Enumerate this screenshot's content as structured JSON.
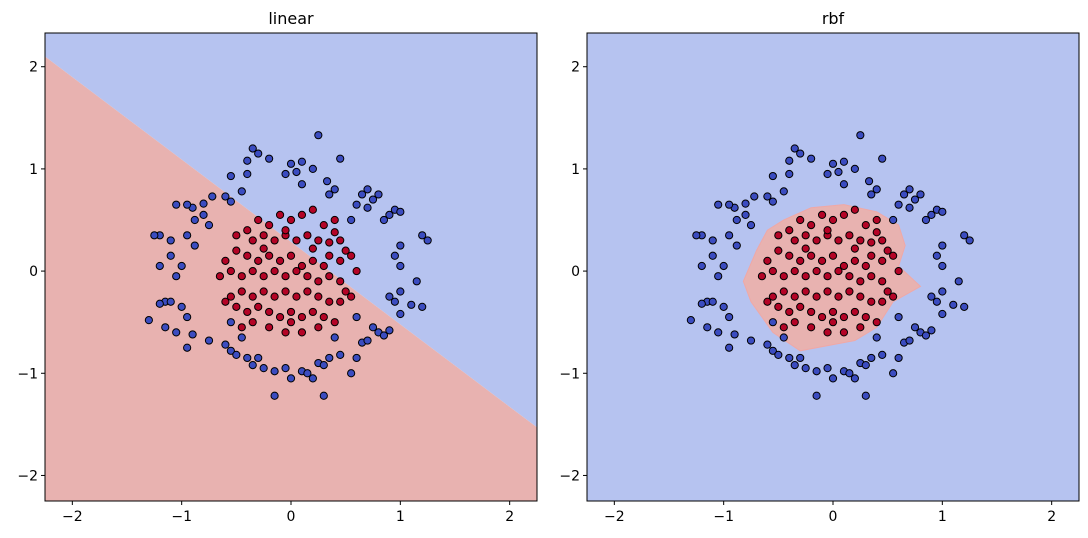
{
  "chart_data": [
    {
      "type": "scatter",
      "subtype": "decision-boundary",
      "title": "linear",
      "xlabel": "",
      "ylabel": "",
      "xlim": [
        -2.25,
        2.25
      ],
      "ylim": [
        -2.25,
        2.33
      ],
      "xticks": [
        -2,
        -1,
        0,
        1,
        2
      ],
      "yticks": [
        -2,
        -1,
        0,
        1,
        2
      ],
      "xtick_labels": [
        "−2",
        "−1",
        "0",
        "1",
        "2"
      ],
      "ytick_labels": [
        "−2",
        "−1",
        "0",
        "1",
        "2"
      ],
      "grid": false,
      "regions": {
        "boundary_line": [
          [
            -2.25,
            2.1
          ],
          [
            2.25,
            -1.53
          ]
        ],
        "below_color": "#e8b2b0",
        "above_color": "#b6c3f0"
      }
    },
    {
      "type": "scatter",
      "subtype": "decision-boundary",
      "title": "rbf",
      "xlabel": "",
      "ylabel": "",
      "xlim": [
        -2.25,
        2.25
      ],
      "ylim": [
        -2.25,
        2.33
      ],
      "xticks": [
        -2,
        -1,
        0,
        1,
        2
      ],
      "yticks": [
        -2,
        -1,
        0,
        1,
        2
      ],
      "xtick_labels": [
        "−2",
        "−1",
        "0",
        "1",
        "2"
      ],
      "ytick_labels": [
        "−2",
        "−1",
        "0",
        "1",
        "2"
      ],
      "grid": false,
      "regions": {
        "inner_polygon": [
          [
            -0.45,
            0.5
          ],
          [
            -0.2,
            0.62
          ],
          [
            0.1,
            0.65
          ],
          [
            0.4,
            0.58
          ],
          [
            0.6,
            0.45
          ],
          [
            0.66,
            0.25
          ],
          [
            0.6,
            0.05
          ],
          [
            0.75,
            -0.1
          ],
          [
            0.8,
            -0.15
          ],
          [
            0.55,
            -0.3
          ],
          [
            0.4,
            -0.55
          ],
          [
            0.2,
            -0.68
          ],
          [
            0,
            -0.72
          ],
          [
            -0.3,
            -0.78
          ],
          [
            -0.55,
            -0.6
          ],
          [
            -0.75,
            -0.3
          ],
          [
            -0.82,
            -0.1
          ],
          [
            -0.7,
            0.2
          ],
          [
            -0.6,
            0.4
          ]
        ],
        "inside_color": "#e8b2b0",
        "outside_color": "#b6c3f0"
      }
    }
  ],
  "points": {
    "outer_color": "#3b4cc0",
    "inner_color": "#b40426",
    "outer": [
      [
        -0.35,
        1.2
      ],
      [
        -0.3,
        1.15
      ],
      [
        -0.4,
        1.08
      ],
      [
        -0.2,
        1.1
      ],
      [
        0.0,
        1.05
      ],
      [
        0.1,
        1.07
      ],
      [
        0.2,
        1.0
      ],
      [
        0.25,
        1.33
      ],
      [
        0.05,
        0.97
      ],
      [
        -0.05,
        0.95
      ],
      [
        0.45,
        1.1
      ],
      [
        0.4,
        0.8
      ],
      [
        0.33,
        0.88
      ],
      [
        0.1,
        0.85
      ],
      [
        -0.55,
        0.93
      ],
      [
        -0.45,
        0.78
      ],
      [
        -0.6,
        0.73
      ],
      [
        -0.55,
        0.68
      ],
      [
        -0.72,
        0.73
      ],
      [
        -0.8,
        0.66
      ],
      [
        -0.8,
        0.55
      ],
      [
        -0.75,
        0.45
      ],
      [
        -0.9,
        0.62
      ],
      [
        -0.95,
        0.65
      ],
      [
        -1.05,
        0.65
      ],
      [
        -0.88,
        0.5
      ],
      [
        -1.2,
        0.35
      ],
      [
        -1.25,
        0.35
      ],
      [
        -1.1,
        0.3
      ],
      [
        -0.95,
        0.35
      ],
      [
        -0.88,
        0.25
      ],
      [
        -1.0,
        0.05
      ],
      [
        -1.1,
        0.15
      ],
      [
        -1.2,
        0.05
      ],
      [
        -1.05,
        -0.05
      ],
      [
        -1.15,
        -0.3
      ],
      [
        -1.2,
        -0.32
      ],
      [
        -1.1,
        -0.3
      ],
      [
        -1.0,
        -0.35
      ],
      [
        -0.95,
        -0.45
      ],
      [
        -1.05,
        -0.6
      ],
      [
        -1.15,
        -0.55
      ],
      [
        -1.3,
        -0.48
      ],
      [
        -0.9,
        -0.62
      ],
      [
        -0.95,
        -0.75
      ],
      [
        -0.75,
        -0.68
      ],
      [
        -0.6,
        -0.72
      ],
      [
        -0.55,
        -0.78
      ],
      [
        -0.5,
        -0.82
      ],
      [
        -0.4,
        -0.85
      ],
      [
        -0.3,
        -0.85
      ],
      [
        -0.35,
        -0.92
      ],
      [
        -0.25,
        -0.95
      ],
      [
        -0.15,
        -0.98
      ],
      [
        -0.05,
        -0.95
      ],
      [
        0.0,
        -1.05
      ],
      [
        0.1,
        -0.98
      ],
      [
        0.15,
        -1.0
      ],
      [
        0.2,
        -1.05
      ],
      [
        0.25,
        -0.9
      ],
      [
        0.3,
        -0.92
      ],
      [
        0.35,
        -0.85
      ],
      [
        0.45,
        -0.82
      ],
      [
        0.55,
        -1.0
      ],
      [
        0.6,
        -0.85
      ],
      [
        0.65,
        -0.7
      ],
      [
        0.7,
        -0.68
      ],
      [
        0.75,
        -0.55
      ],
      [
        0.8,
        -0.6
      ],
      [
        0.85,
        -0.63
      ],
      [
        0.9,
        -0.58
      ],
      [
        1.0,
        -0.42
      ],
      [
        1.1,
        -0.33
      ],
      [
        1.2,
        -0.35
      ],
      [
        0.95,
        -0.3
      ],
      [
        0.9,
        -0.25
      ],
      [
        1.0,
        -0.2
      ],
      [
        1.15,
        -0.1
      ],
      [
        1.0,
        0.05
      ],
      [
        0.95,
        0.15
      ],
      [
        1.0,
        0.25
      ],
      [
        1.2,
        0.35
      ],
      [
        1.25,
        0.3
      ],
      [
        0.85,
        0.5
      ],
      [
        0.9,
        0.55
      ],
      [
        0.95,
        0.6
      ],
      [
        1.0,
        0.58
      ],
      [
        0.75,
        0.7
      ],
      [
        0.8,
        0.75
      ],
      [
        0.7,
        0.8
      ],
      [
        0.65,
        0.75
      ],
      [
        0.6,
        0.65
      ],
      [
        0.7,
        0.62
      ],
      [
        0.55,
        0.5
      ],
      [
        -0.15,
        -1.22
      ],
      [
        0.3,
        -1.22
      ],
      [
        -0.4,
        0.95
      ],
      [
        -0.45,
        -0.65
      ],
      [
        -0.55,
        -0.5
      ],
      [
        0.4,
        -0.65
      ],
      [
        0.6,
        -0.45
      ],
      [
        0.35,
        0.75
      ]
    ],
    "inner": [
      [
        -0.3,
        0.5
      ],
      [
        -0.2,
        0.45
      ],
      [
        -0.1,
        0.55
      ],
      [
        0.0,
        0.5
      ],
      [
        0.1,
        0.55
      ],
      [
        0.2,
        0.6
      ],
      [
        0.3,
        0.45
      ],
      [
        0.4,
        0.5
      ],
      [
        -0.4,
        0.4
      ],
      [
        -0.5,
        0.35
      ],
      [
        -0.35,
        0.3
      ],
      [
        -0.25,
        0.35
      ],
      [
        -0.15,
        0.3
      ],
      [
        -0.05,
        0.35
      ],
      [
        0.05,
        0.3
      ],
      [
        0.15,
        0.35
      ],
      [
        0.25,
        0.3
      ],
      [
        0.35,
        0.28
      ],
      [
        0.45,
        0.3
      ],
      [
        0.5,
        0.2
      ],
      [
        0.55,
        0.15
      ],
      [
        0.45,
        0.1
      ],
      [
        0.35,
        0.15
      ],
      [
        0.3,
        0.05
      ],
      [
        0.2,
        0.1
      ],
      [
        0.1,
        0.05
      ],
      [
        0.0,
        0.15
      ],
      [
        -0.1,
        0.1
      ],
      [
        -0.2,
        0.15
      ],
      [
        -0.3,
        0.1
      ],
      [
        -0.4,
        0.15
      ],
      [
        -0.5,
        0.2
      ],
      [
        -0.6,
        0.1
      ],
      [
        -0.55,
        0.0
      ],
      [
        -0.45,
        -0.05
      ],
      [
        -0.35,
        0.0
      ],
      [
        -0.25,
        -0.05
      ],
      [
        -0.15,
        0.0
      ],
      [
        -0.05,
        -0.05
      ],
      [
        0.05,
        0.0
      ],
      [
        0.15,
        -0.05
      ],
      [
        0.25,
        -0.1
      ],
      [
        0.35,
        -0.05
      ],
      [
        0.45,
        -0.1
      ],
      [
        0.5,
        -0.2
      ],
      [
        0.55,
        -0.25
      ],
      [
        0.45,
        -0.3
      ],
      [
        0.35,
        -0.3
      ],
      [
        0.25,
        -0.25
      ],
      [
        0.15,
        -0.2
      ],
      [
        0.05,
        -0.25
      ],
      [
        -0.05,
        -0.2
      ],
      [
        -0.15,
        -0.25
      ],
      [
        -0.25,
        -0.2
      ],
      [
        -0.35,
        -0.25
      ],
      [
        -0.45,
        -0.2
      ],
      [
        -0.55,
        -0.25
      ],
      [
        -0.6,
        -0.3
      ],
      [
        -0.5,
        -0.35
      ],
      [
        -0.4,
        -0.4
      ],
      [
        -0.3,
        -0.35
      ],
      [
        -0.2,
        -0.4
      ],
      [
        -0.1,
        -0.45
      ],
      [
        0.0,
        -0.4
      ],
      [
        0.1,
        -0.45
      ],
      [
        0.2,
        -0.4
      ],
      [
        0.3,
        -0.45
      ],
      [
        0.4,
        -0.5
      ],
      [
        0.25,
        -0.55
      ],
      [
        0.1,
        -0.6
      ],
      [
        -0.05,
        -0.6
      ],
      [
        -0.2,
        -0.55
      ],
      [
        -0.35,
        -0.5
      ],
      [
        -0.45,
        -0.55
      ],
      [
        0.0,
        -0.5
      ],
      [
        -0.25,
        0.22
      ],
      [
        0.2,
        0.22
      ],
      [
        -0.05,
        0.4
      ],
      [
        0.4,
        0.38
      ],
      [
        -0.65,
        -0.05
      ],
      [
        0.6,
        0.0
      ]
    ]
  }
}
